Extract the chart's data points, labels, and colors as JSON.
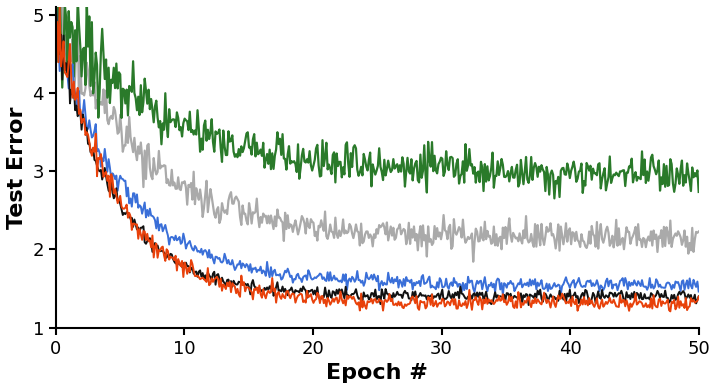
{
  "title": "",
  "xlabel": "Epoch #",
  "ylabel": "Test Error",
  "xlim": [
    0,
    50
  ],
  "ylim": [
    1,
    5.1
  ],
  "xticks": [
    0,
    10,
    20,
    30,
    40,
    50
  ],
  "yticks": [
    1,
    2,
    3,
    4,
    5
  ],
  "figsize": [
    7.17,
    3.9
  ],
  "dpi": 100,
  "curves": {
    "black": {
      "color": "#111111",
      "start": 4.9,
      "end": 1.4,
      "noise": 0.04,
      "decay": 0.22,
      "lw": 1.4,
      "seed": 1
    },
    "orange": {
      "color": "#E8410A",
      "start": 5.0,
      "end": 1.32,
      "noise": 0.05,
      "decay": 0.21,
      "lw": 1.4,
      "seed": 2
    },
    "blue": {
      "color": "#3A6FD8",
      "start": 4.8,
      "end": 1.55,
      "noise": 0.045,
      "decay": 0.18,
      "lw": 1.4,
      "seed": 3
    },
    "green": {
      "color": "#2A7A2A",
      "start": 5.0,
      "end": 2.95,
      "noise": 0.13,
      "decay": 0.12,
      "lw": 1.6,
      "seed": 4
    },
    "gray": {
      "color": "#AAAAAA",
      "start": 5.0,
      "end": 2.15,
      "noise": 0.1,
      "decay": 0.15,
      "lw": 1.6,
      "seed": 5
    }
  },
  "background_color": "#ffffff",
  "tick_label_size": 13,
  "axis_label_size": 16
}
